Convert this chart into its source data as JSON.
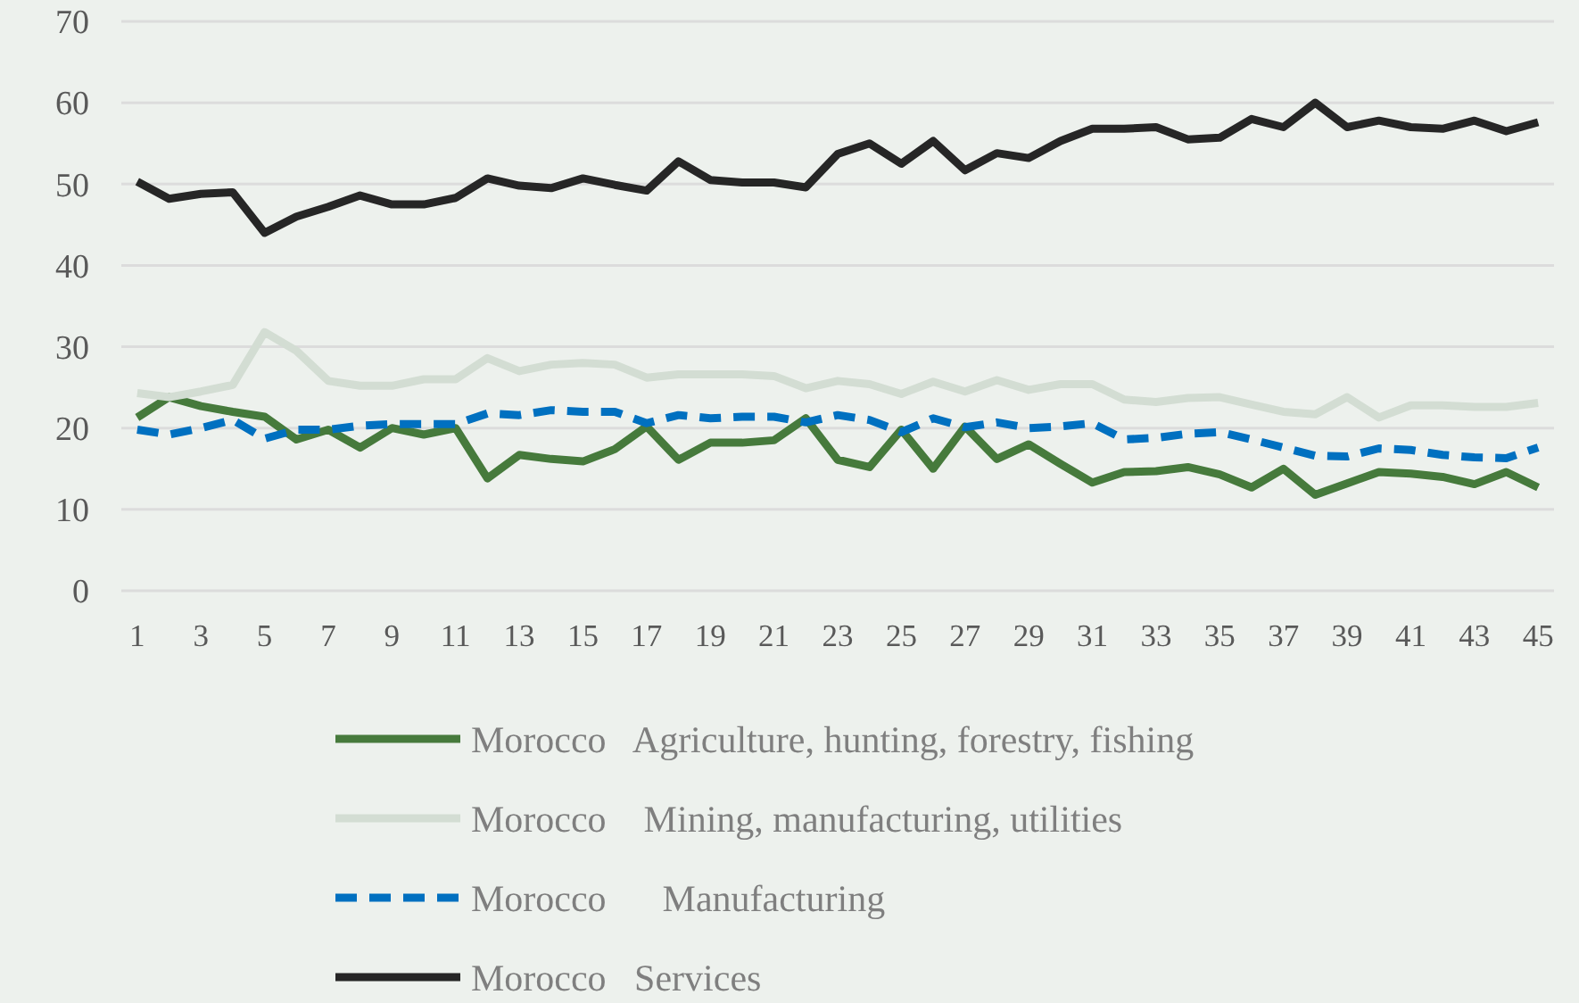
{
  "chart_data": {
    "type": "line",
    "x": [
      1,
      2,
      3,
      4,
      5,
      6,
      7,
      8,
      9,
      10,
      11,
      12,
      13,
      14,
      15,
      16,
      17,
      18,
      19,
      20,
      21,
      22,
      23,
      24,
      25,
      26,
      27,
      28,
      29,
      30,
      31,
      32,
      33,
      34,
      35,
      36,
      37,
      38,
      39,
      40,
      41,
      42,
      43,
      44,
      45
    ],
    "xlim": [
      0.5,
      45.5
    ],
    "xticks": [
      1,
      3,
      5,
      7,
      9,
      11,
      13,
      15,
      17,
      19,
      21,
      23,
      25,
      27,
      29,
      31,
      33,
      35,
      37,
      39,
      41,
      43,
      45
    ],
    "ylim": [
      0,
      70
    ],
    "yticks": [
      0,
      10,
      20,
      30,
      40,
      50,
      60,
      70
    ],
    "grid": "y",
    "legend": "bottom",
    "marker": "none",
    "series": [
      {
        "name": "Morocco   Agriculture, hunting, forestry, fishing",
        "color": "#467a3c",
        "line_style": "solid",
        "values": [
          21.3,
          23.8,
          22.7,
          22,
          21.4,
          18.6,
          19.8,
          17.6,
          20,
          19.2,
          20,
          13.8,
          16.7,
          16.2,
          15.9,
          17.4,
          20.2,
          16.1,
          18.2,
          18.2,
          18.5,
          21.2,
          16.1,
          15.2,
          19.8,
          15,
          20.2,
          16.2,
          18,
          15.6,
          13.3,
          14.6,
          14.7,
          15.2,
          14.3,
          12.7,
          15,
          11.8,
          13.2,
          14.6,
          14.4,
          14,
          13.1,
          14.6,
          12.7
        ]
      },
      {
        "name": "Morocco    Mining, manufacturing, utilities",
        "color": "#d3ddd3",
        "line_style": "solid",
        "values": [
          24.3,
          23.8,
          24.5,
          25.3,
          31.8,
          29.5,
          25.8,
          25.2,
          25.2,
          26,
          26,
          28.6,
          27,
          27.8,
          28,
          27.8,
          26.2,
          26.6,
          26.6,
          26.6,
          26.4,
          24.9,
          25.8,
          25.4,
          24.2,
          25.7,
          24.5,
          25.9,
          24.7,
          25.4,
          25.4,
          23.5,
          23.2,
          23.7,
          23.8,
          22.9,
          22,
          21.7,
          23.8,
          21.3,
          22.8,
          22.8,
          22.6,
          22.6,
          23.1
        ]
      },
      {
        "name": "Morocco      Manufacturing",
        "color": "#0070c0",
        "line_style": "dashed",
        "values": [
          19.8,
          19.2,
          20,
          21,
          18.7,
          19.8,
          19.8,
          20.3,
          20.5,
          20.5,
          20.5,
          21.8,
          21.6,
          22.2,
          22,
          22,
          20.6,
          21.6,
          21.2,
          21.4,
          21.4,
          20.7,
          21.6,
          21,
          19.5,
          21.2,
          20.1,
          20.7,
          20,
          20.2,
          20.6,
          18.6,
          18.8,
          19.3,
          19.5,
          18.6,
          17.6,
          16.6,
          16.5,
          17.5,
          17.3,
          16.7,
          16.4,
          16.3,
          17.6
        ]
      },
      {
        "name": "Morocco   Services",
        "color": "#262626",
        "line_style": "solid",
        "values": [
          50.3,
          48.2,
          48.8,
          49,
          44,
          46,
          47.2,
          48.6,
          47.5,
          47.5,
          48.3,
          50.7,
          49.8,
          49.5,
          50.7,
          49.9,
          49.2,
          52.8,
          50.5,
          50.2,
          50.2,
          49.6,
          53.7,
          55,
          52.5,
          55.3,
          51.7,
          53.8,
          53.2,
          55.3,
          56.8,
          56.8,
          57,
          55.5,
          55.7,
          58,
          57,
          60,
          57,
          57.8,
          57,
          56.8,
          57.8,
          56.5,
          57.6
        ]
      }
    ]
  }
}
